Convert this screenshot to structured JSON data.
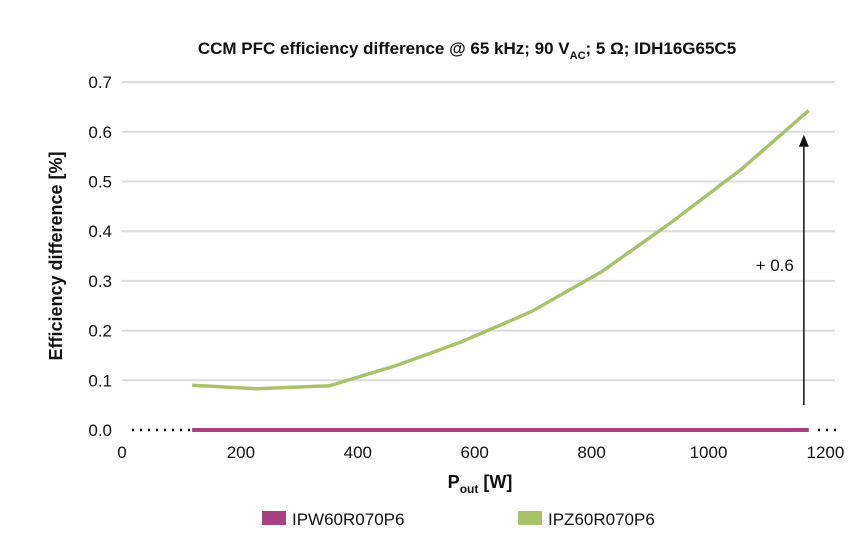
{
  "chart_data": {
    "type": "line",
    "title": "CCM PFC efficiency difference @ 65 kHz; 90 V",
    "title_sub": "AC",
    "title_tail": "; 5 Ω; IDH16G65C5",
    "xlabel": "P",
    "xlabel_sub": "out",
    "xlabel_tail": " [W]",
    "ylabel": "Efficiency difference [%]",
    "xlim": [
      0,
      1230
    ],
    "ylim": [
      0,
      0.7
    ],
    "xticks": [
      0,
      200,
      400,
      600,
      800,
      1000,
      1200
    ],
    "yticks": [
      "0.0",
      "0.1",
      "0.2",
      "0.3",
      "0.4",
      "0.5",
      "0.6",
      "0.7"
    ],
    "grid": true,
    "legend_position": "bottom",
    "series": [
      {
        "name": "IPW60R070P6",
        "color": "#a8417f",
        "x": [
          120,
          1175
        ],
        "y": [
          0,
          0
        ]
      },
      {
        "name": "IPZ60R070P6",
        "color": "#a9c26a",
        "x": [
          120,
          230,
          355,
          470,
          580,
          700,
          820,
          940,
          1060,
          1175
        ],
        "y": [
          0.09,
          0.083,
          0.089,
          0.13,
          0.177,
          0.238,
          0.318,
          0.418,
          0.525,
          0.643
        ]
      }
    ],
    "annotation": {
      "text": "+ 0.6",
      "x": 1170,
      "y_from": 0.05,
      "y_to": 0.59
    }
  }
}
